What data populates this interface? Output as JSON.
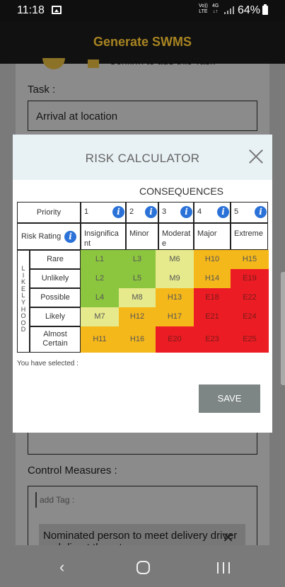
{
  "status_bar": {
    "time": "11:18",
    "lte_top": "Vo))",
    "lte_bottom": "LTE",
    "net_top": "4G",
    "net_bottom": "↓↑",
    "battery": "64%",
    "icons": [
      "image-icon",
      "signal-icon",
      "battery-icon"
    ]
  },
  "app_bar": {
    "title": "Generate SWMS"
  },
  "background": {
    "confirm_text": "Confirm to add this Task",
    "task_label": "Task :",
    "task_value": "Arrival at location",
    "control_label": "Control Measures :",
    "tag_placeholder": "add Tag :",
    "tag_chip": "Nominated person to meet delivery driver and direct them to"
  },
  "modal": {
    "title": "RISK CALCULATOR",
    "consequences_label": "CONSEQUENCES",
    "priority_label": "Priority",
    "risk_rating_label": "Risk Rating",
    "likelihood_label": "LIKELYHOOD",
    "consequence_columns": [
      {
        "num": "1",
        "label": "Insignifica nt"
      },
      {
        "num": "2",
        "label": "Minor"
      },
      {
        "num": "3",
        "label": "Moderat e"
      },
      {
        "num": "4",
        "label": "Major"
      },
      {
        "num": "5",
        "label": "Extreme"
      }
    ],
    "likelihood_rows": [
      "Rare",
      "Unlikely",
      "Possible",
      "Likely",
      "Almost Certain"
    ],
    "matrix": [
      [
        "L1",
        "L3",
        "M6",
        "H10",
        "H15"
      ],
      [
        "L2",
        "L5",
        "M9",
        "H14",
        "E19"
      ],
      [
        "L4",
        "M8",
        "H13",
        "E18",
        "E22"
      ],
      [
        "M7",
        "H12",
        "H17",
        "E21",
        "E24"
      ],
      [
        "H11",
        "H16",
        "E20",
        "E23",
        "E25"
      ]
    ],
    "colors": {
      "L": "#8cc63f",
      "M": "#e6ea8c",
      "H": "#f5b81b",
      "E": "#ec1c24"
    },
    "selected_label": "You have selected :",
    "save_label": "SAVE"
  }
}
